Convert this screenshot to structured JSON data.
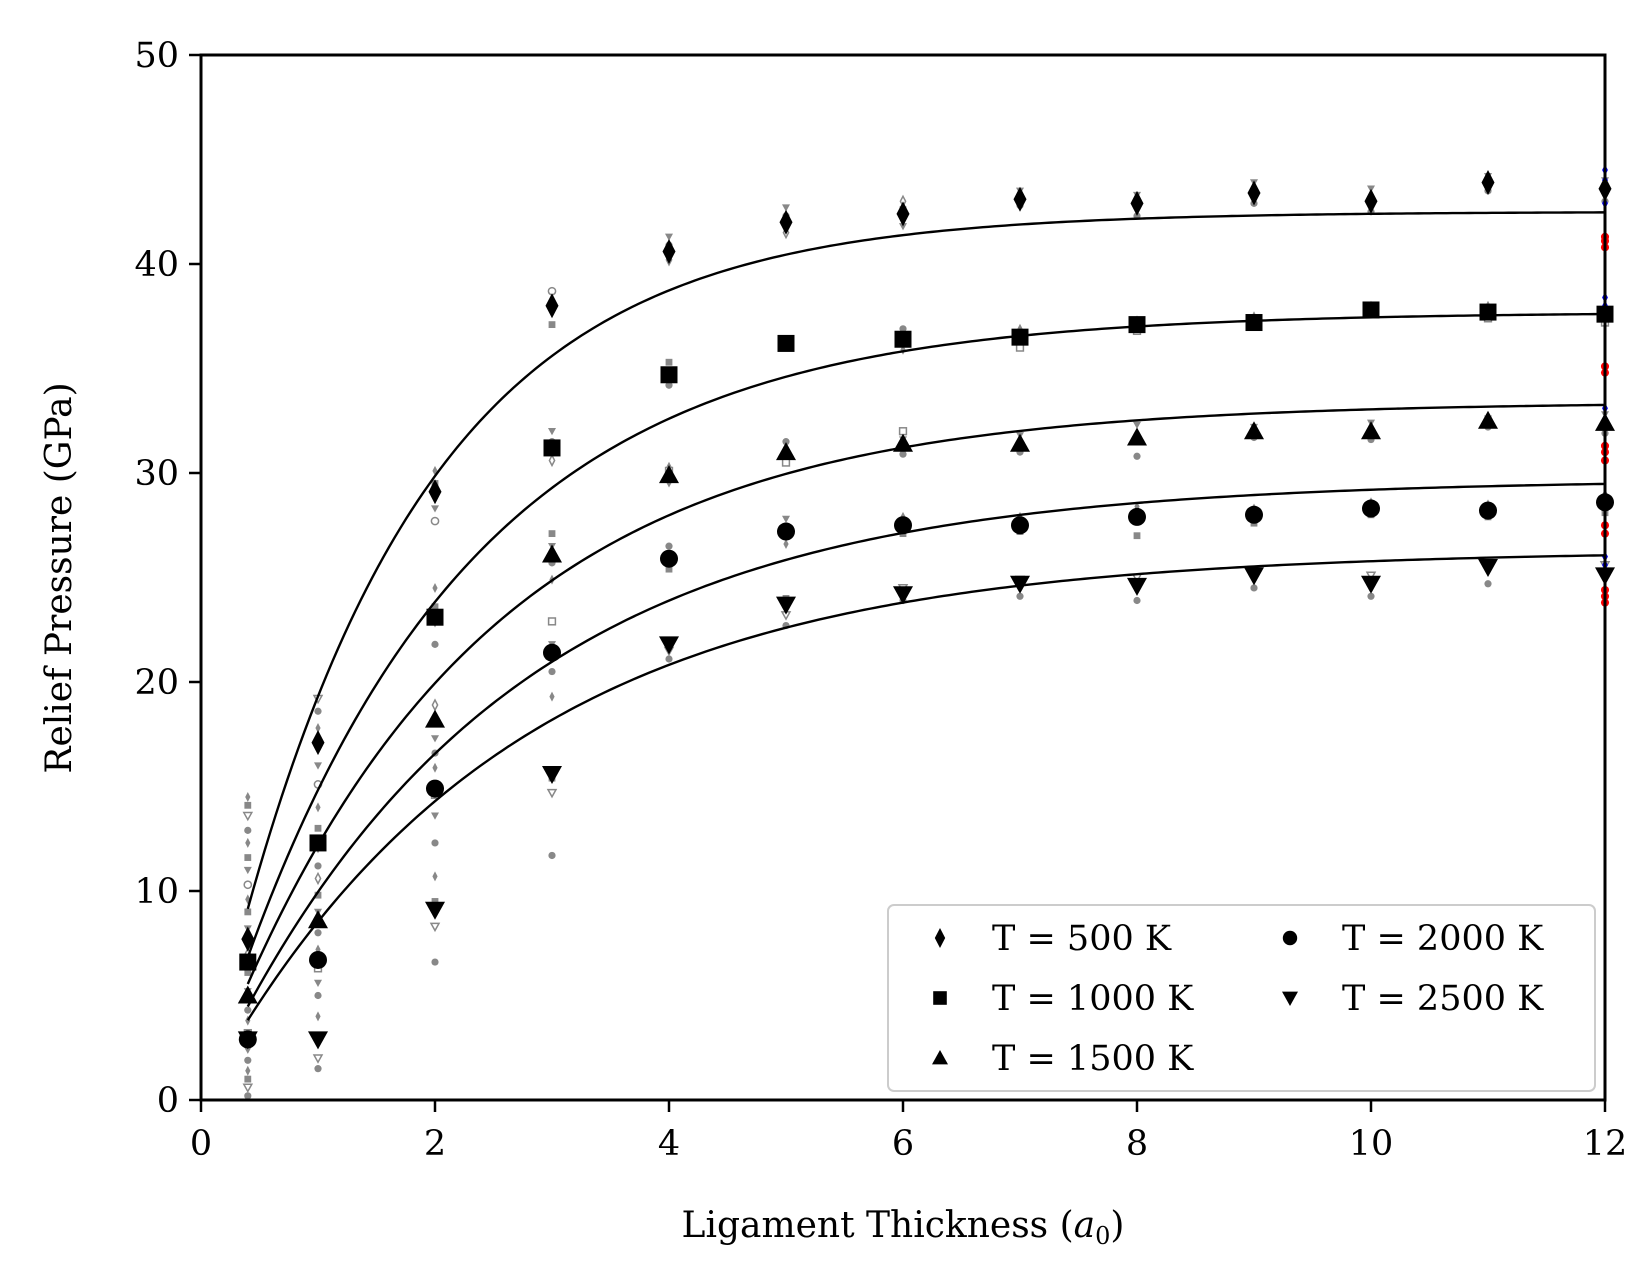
{
  "chart_data": {
    "type": "scatter",
    "xlabel": "Ligament Thickness (",
    "xlabel_symbol": "a",
    "xlabel_subscript": "0",
    "xlabel_close": ")",
    "ylabel": "Relief Pressure (GPa)",
    "xlim": [
      0,
      12
    ],
    "ylim": [
      0,
      50
    ],
    "xticks": [
      0,
      2,
      4,
      6,
      8,
      10,
      12
    ],
    "xtick_labels": [
      "0",
      "2",
      "4",
      "6",
      "8",
      "10",
      "12"
    ],
    "yticks": [
      0,
      10,
      20,
      30,
      40,
      50
    ],
    "ytick_labels": [
      "0",
      "10",
      "20",
      "30",
      "40",
      "50"
    ],
    "legend_position": "lower-right",
    "colors": {
      "mean_marker": "#000000",
      "raw_samples": "#888888",
      "reference_a": "#0000ff",
      "reference_b": "#ff0000"
    },
    "x": [
      0.4,
      1,
      2,
      3,
      4,
      5,
      6,
      7,
      8,
      9,
      10,
      11,
      12
    ],
    "series": [
      {
        "name": "T = 500 K",
        "marker": "diamond",
        "values": [
          7.7,
          17.1,
          29.1,
          38.0,
          40.6,
          42.0,
          42.4,
          43.1,
          42.9,
          43.4,
          43.0,
          43.9,
          43.6
        ],
        "fit": {
          "plateau": 42.5,
          "length": 1.65
        }
      },
      {
        "name": "T = 1000 K",
        "marker": "square",
        "values": [
          6.6,
          12.3,
          23.1,
          31.2,
          34.7,
          36.2,
          36.4,
          36.5,
          37.1,
          37.2,
          37.8,
          37.7,
          37.6
        ],
        "fit": {
          "plateau": 37.7,
          "length": 2.0
        }
      },
      {
        "name": "T = 1500 K",
        "marker": "triangle-up",
        "values": [
          5.0,
          8.6,
          18.2,
          26.1,
          29.9,
          31.0,
          31.4,
          31.4,
          31.7,
          32.0,
          32.0,
          32.5,
          32.4
        ],
        "fit": {
          "plateau": 33.4,
          "length": 2.2
        }
      },
      {
        "name": "T = 2000 K",
        "marker": "circle",
        "values": [
          2.9,
          6.7,
          14.9,
          21.4,
          25.9,
          27.2,
          27.5,
          27.5,
          27.9,
          28.0,
          28.3,
          28.2,
          28.6
        ],
        "fit": {
          "plateau": 29.7,
          "length": 2.45
        }
      },
      {
        "name": "T = 2500 K",
        "marker": "triangle-down",
        "values": [
          2.9,
          2.9,
          9.1,
          15.6,
          21.8,
          23.7,
          24.2,
          24.7,
          24.6,
          25.1,
          24.7,
          25.5,
          25.1
        ],
        "fit": {
          "plateau": 26.3,
          "length": 2.55
        }
      }
    ],
    "raw_samples": [
      {
        "x": 0.4,
        "values": [
          0.2,
          0.6,
          1.0,
          1.4,
          1.9,
          2.4,
          3.2,
          3.8,
          4.3,
          5.2,
          6.1,
          7.0,
          7.6,
          8.2,
          9.0,
          9.6,
          10.3,
          11.0,
          11.6,
          12.3,
          12.9,
          13.6,
          14.1,
          14.5
        ]
      },
      {
        "x": 1,
        "values": [
          1.5,
          2.0,
          3.1,
          4.0,
          5.0,
          5.6,
          6.3,
          7.2,
          8.0,
          9.0,
          9.8,
          10.6,
          11.2,
          12.0,
          13.0,
          14.0,
          15.1,
          16.0,
          17.0,
          17.8,
          18.6,
          19.2
        ]
      },
      {
        "x": 2,
        "values": [
          6.6,
          8.3,
          9.5,
          10.7,
          12.3,
          13.6,
          14.6,
          15.9,
          16.6,
          17.3,
          18.1,
          18.9,
          21.8,
          22.8,
          23.6,
          24.5,
          27.7,
          28.3,
          29.5,
          30.1
        ]
      },
      {
        "x": 3,
        "values": [
          11.7,
          14.7,
          15.4,
          19.3,
          20.5,
          21.8,
          22.9,
          24.9,
          25.7,
          26.5,
          27.1,
          30.6,
          31.5,
          32.0,
          37.1,
          38.2,
          38.7
        ]
      },
      {
        "x": 4,
        "values": [
          21.1,
          21.5,
          25.4,
          26.1,
          26.5,
          29.5,
          30.1,
          30.3,
          34.2,
          34.8,
          35.3,
          40.2,
          40.9,
          41.3
        ]
      },
      {
        "x": 5,
        "values": [
          22.7,
          23.2,
          24.0,
          26.6,
          27.2,
          27.8,
          30.5,
          31.1,
          31.5,
          36.0,
          36.4,
          41.5,
          42.3,
          42.7
        ]
      },
      {
        "x": 6,
        "values": [
          23.9,
          24.5,
          27.1,
          27.9,
          30.9,
          31.6,
          32.0,
          35.9,
          36.9,
          41.8,
          42.6,
          43.0
        ]
      },
      {
        "x": 7,
        "values": [
          24.1,
          24.9,
          27.2,
          27.9,
          31.0,
          31.8,
          36.0,
          36.9,
          42.8,
          43.5
        ]
      },
      {
        "x": 8,
        "values": [
          23.9,
          25.0,
          27.0,
          28.4,
          30.8,
          32.3,
          36.8,
          37.3,
          42.3,
          43.3
        ]
      },
      {
        "x": 9,
        "values": [
          24.5,
          25.3,
          27.6,
          28.3,
          31.7,
          32.2,
          37.0,
          37.5,
          42.9,
          43.9
        ]
      },
      {
        "x": 10,
        "values": [
          24.1,
          25.1,
          28.0,
          28.6,
          31.6,
          32.4,
          37.6,
          38.0,
          42.5,
          43.6
        ]
      },
      {
        "x": 11,
        "values": [
          24.7,
          25.7,
          27.9,
          28.5,
          32.2,
          32.6,
          37.4,
          38.0,
          43.5,
          44.2
        ]
      },
      {
        "x": 12,
        "values": [
          24.4,
          25.6,
          28.1,
          29.0,
          31.9,
          32.8,
          37.2,
          38.0,
          43.0,
          44.0
        ]
      }
    ],
    "reference_a": {
      "x": 12,
      "values": [
        42.9,
        43.4,
        44.0,
        44.5,
        37.5,
        38.0,
        38.4,
        32.6,
        33.1,
        25.6,
        26.0,
        28.6,
        28.9
      ]
    },
    "reference_b": {
      "x": 12,
      "values": [
        40.8,
        41.1,
        41.3,
        34.8,
        35.1,
        30.6,
        31.0,
        31.3,
        27.1,
        27.5,
        23.8,
        24.1,
        24.4
      ]
    }
  }
}
